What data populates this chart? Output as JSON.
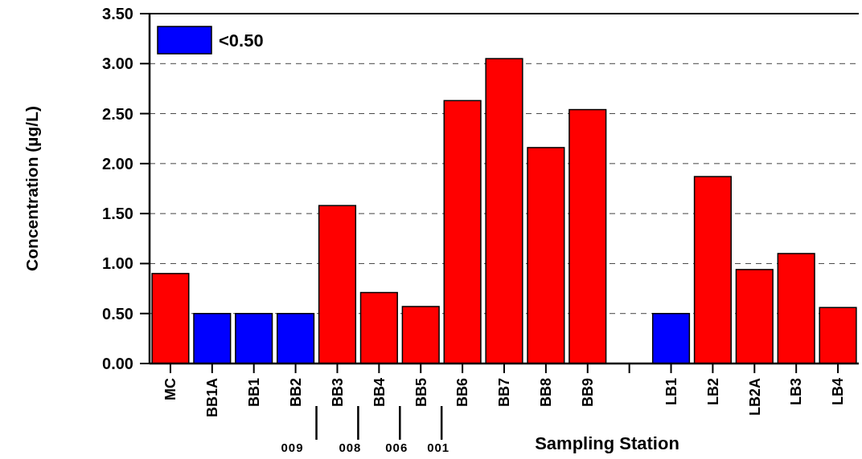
{
  "chart_data": {
    "type": "bar",
    "xlabel": "Sampling Station",
    "ylabel": "Concentration (µg/L)",
    "categories": [
      "MC",
      "BB1A",
      "BB1",
      "BB2",
      "BB3",
      "BB4",
      "BB5",
      "BB6",
      "BB7",
      "BB8",
      "BB9",
      null,
      "LB1",
      "LB2",
      "LB2A",
      "LB3",
      "LB4"
    ],
    "series": [
      {
        "color": "#ff0000",
        "values": [
          0.9,
          null,
          null,
          null,
          1.58,
          0.71,
          0.57,
          2.63,
          3.05,
          2.16,
          2.54,
          null,
          null,
          1.87,
          0.94,
          1.1,
          0.56
        ]
      },
      {
        "name": "<0.50",
        "color": "#0000ff",
        "values": [
          null,
          0.5,
          0.5,
          0.5,
          null,
          null,
          null,
          null,
          null,
          null,
          null,
          null,
          0.5,
          null,
          null,
          null,
          null
        ]
      }
    ],
    "stacked": true,
    "ylim": [
      0,
      3.5
    ],
    "yticks": [
      {
        "value": 0,
        "label": "0.00"
      },
      {
        "value": 0.5,
        "label": "0.50"
      },
      {
        "value": 1,
        "label": "1.00"
      },
      {
        "value": 1.5,
        "label": "1.50"
      },
      {
        "value": 2,
        "label": "2.00"
      },
      {
        "value": 2.5,
        "label": "2.50"
      },
      {
        "value": 3,
        "label": "3.00"
      },
      {
        "value": 3.5,
        "label": "3.50"
      }
    ],
    "grid": "y",
    "legend": "top left",
    "annotations": [
      "009",
      "008",
      "006",
      "001"
    ]
  }
}
